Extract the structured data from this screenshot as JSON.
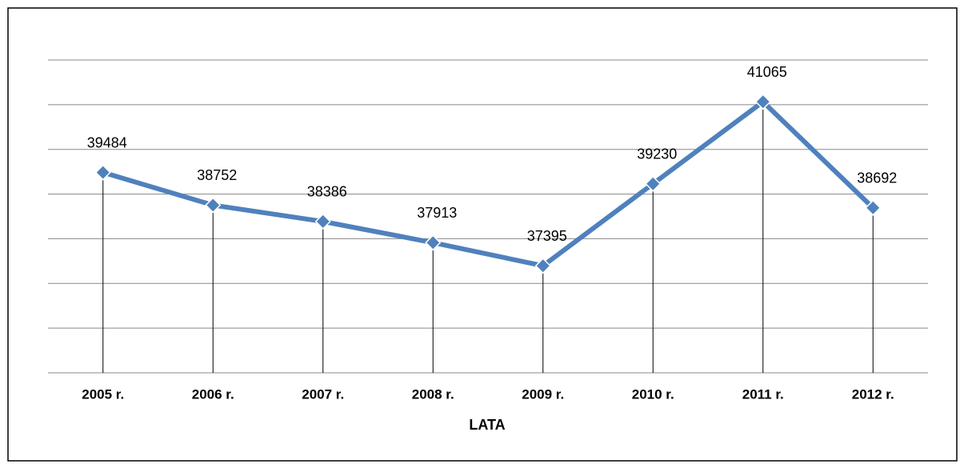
{
  "chart_data": {
    "type": "line",
    "x_label": "LATA",
    "categories": [
      "2005 r.",
      "2006 r.",
      "2007 r.",
      "2008 r.",
      "2009 r.",
      "2010 r.",
      "2011 r.",
      "2012 r."
    ],
    "series": [
      {
        "color": "#4f81bd",
        "values": [
          39484,
          38752,
          38386,
          37913,
          37395,
          39230,
          41065,
          38692
        ]
      }
    ],
    "ylim": [
      35000,
      42000
    ],
    "yticks": [
      35000,
      36000,
      37000,
      38000,
      39000,
      40000,
      41000,
      42000
    ],
    "grid": true
  }
}
